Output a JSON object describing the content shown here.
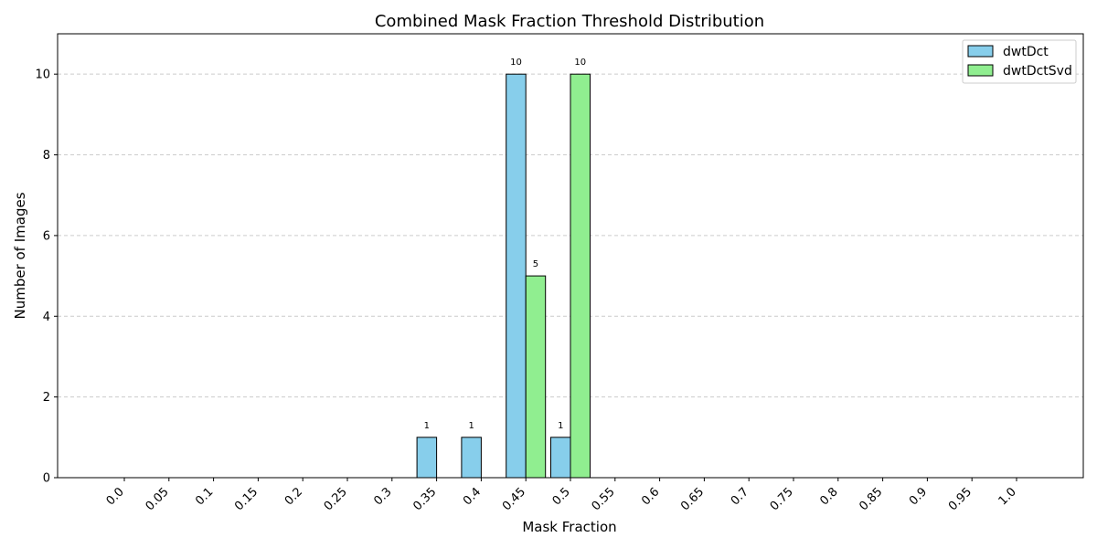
{
  "chart_data": {
    "type": "bar",
    "title": "Combined Mask Fraction Threshold Distribution",
    "xlabel": "Mask Fraction",
    "ylabel": "Number of Images",
    "categories": [
      "0.0",
      "0.05",
      "0.1",
      "0.15",
      "0.2",
      "0.25",
      "0.3",
      "0.35",
      "0.4",
      "0.45",
      "0.5",
      "0.55",
      "0.6",
      "0.65",
      "0.7",
      "0.75",
      "0.8",
      "0.85",
      "0.9",
      "0.95",
      "1.0"
    ],
    "series": [
      {
        "name": "dwtDct",
        "color": "#87ceeb",
        "values": [
          0,
          0,
          0,
          0,
          0,
          0,
          0,
          1,
          1,
          10,
          1,
          0,
          0,
          0,
          0,
          0,
          0,
          0,
          0,
          0,
          0
        ]
      },
      {
        "name": "dwtDctSvd",
        "color": "#90ee90",
        "values": [
          0,
          0,
          0,
          0,
          0,
          0,
          0,
          0,
          0,
          5,
          10,
          0,
          0,
          0,
          0,
          0,
          0,
          0,
          0,
          0,
          0
        ]
      }
    ],
    "ylim": [
      0,
      11
    ],
    "yticks": [
      0,
      2,
      4,
      6,
      8,
      10
    ],
    "grid": "y-dashed",
    "legend": "top-right"
  }
}
